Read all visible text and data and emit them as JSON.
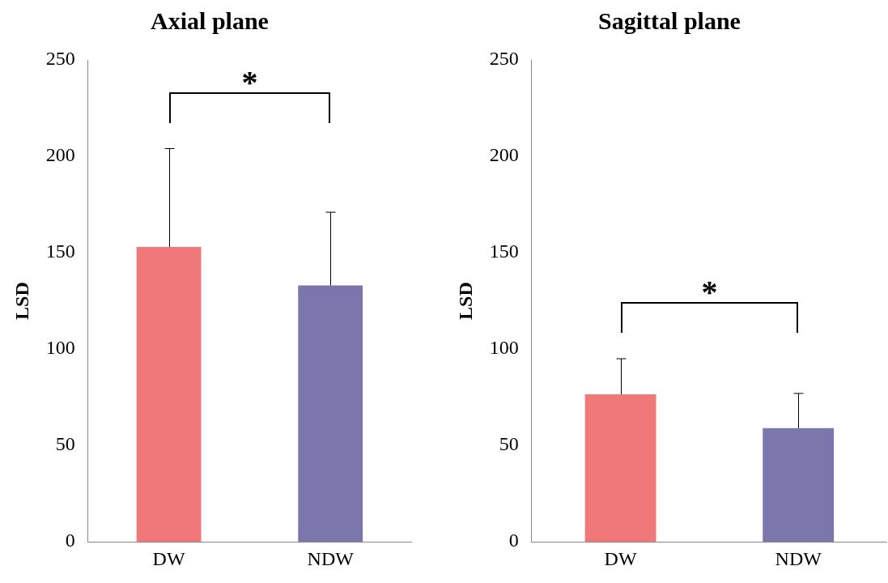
{
  "chart_data": [
    {
      "type": "bar",
      "title": "Axial plane",
      "ylabel": "LSD",
      "categories": [
        "DW",
        "NDW"
      ],
      "values": [
        153,
        133
      ],
      "colors": [
        "#f07878",
        "#7b77ad"
      ],
      "errors": [
        [
          153,
          204
        ],
        [
          133,
          171
        ]
      ],
      "ylim": [
        0,
        250
      ],
      "yticks": [
        0,
        50,
        100,
        150,
        200,
        250
      ],
      "annotations": [
        "*"
      ]
    },
    {
      "type": "bar",
      "title": "Sagittal plane",
      "ylabel": "LSD",
      "categories": [
        "DW",
        "NDW"
      ],
      "values": [
        76.5,
        59
      ],
      "colors": [
        "#f07878",
        "#7b77ad"
      ],
      "errors": [
        [
          76.5,
          95
        ],
        [
          59,
          77
        ]
      ],
      "ylim": [
        0,
        250
      ],
      "yticks": [
        0,
        50,
        100,
        150,
        200,
        250
      ],
      "annotations": [
        "*"
      ]
    }
  ]
}
